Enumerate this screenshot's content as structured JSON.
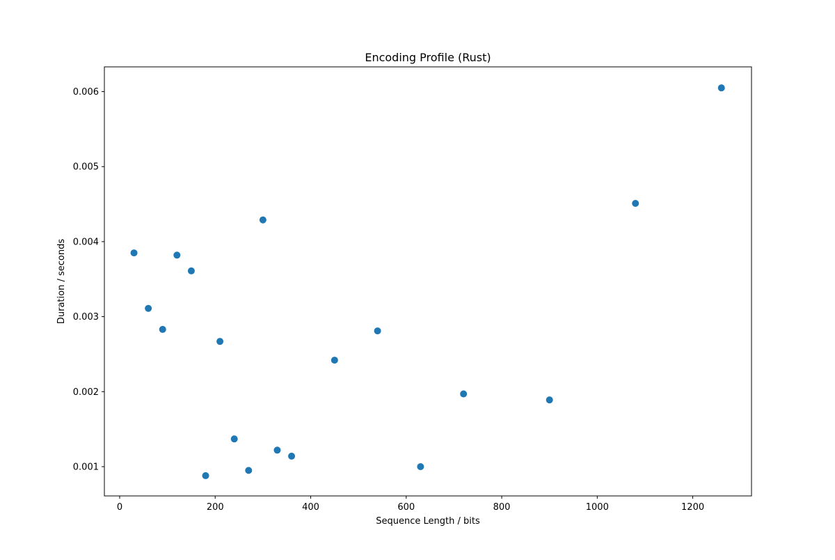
{
  "chart_data": {
    "type": "scatter",
    "title": "Encoding Profile (Rust)",
    "xlabel": "Sequence Length / bits",
    "ylabel": "Duration / seconds",
    "xlim": [
      -32,
      1323
    ],
    "ylim": [
      0.00061,
      0.00633
    ],
    "xticks": [
      0,
      200,
      400,
      600,
      800,
      1000,
      1200
    ],
    "xtick_labels": [
      "0",
      "200",
      "400",
      "600",
      "800",
      "1000",
      "1200"
    ],
    "yticks": [
      0.001,
      0.002,
      0.003,
      0.004,
      0.005,
      0.006
    ],
    "ytick_labels": [
      "0.001",
      "0.002",
      "0.003",
      "0.004",
      "0.005",
      "0.006"
    ],
    "grid": false,
    "marker_color": "#1f77b4",
    "points": [
      {
        "x": 30,
        "y": 0.00385
      },
      {
        "x": 60,
        "y": 0.00311
      },
      {
        "x": 90,
        "y": 0.00283
      },
      {
        "x": 120,
        "y": 0.00382
      },
      {
        "x": 150,
        "y": 0.00361
      },
      {
        "x": 180,
        "y": 0.00088
      },
      {
        "x": 210,
        "y": 0.00267
      },
      {
        "x": 240,
        "y": 0.00137
      },
      {
        "x": 270,
        "y": 0.00095
      },
      {
        "x": 300,
        "y": 0.00429
      },
      {
        "x": 330,
        "y": 0.00122
      },
      {
        "x": 360,
        "y": 0.00114
      },
      {
        "x": 450,
        "y": 0.00242
      },
      {
        "x": 540,
        "y": 0.00281
      },
      {
        "x": 630,
        "y": 0.001
      },
      {
        "x": 720,
        "y": 0.00197
      },
      {
        "x": 900,
        "y": 0.00189
      },
      {
        "x": 1080,
        "y": 0.00451
      },
      {
        "x": 1260,
        "y": 0.00605
      }
    ]
  }
}
